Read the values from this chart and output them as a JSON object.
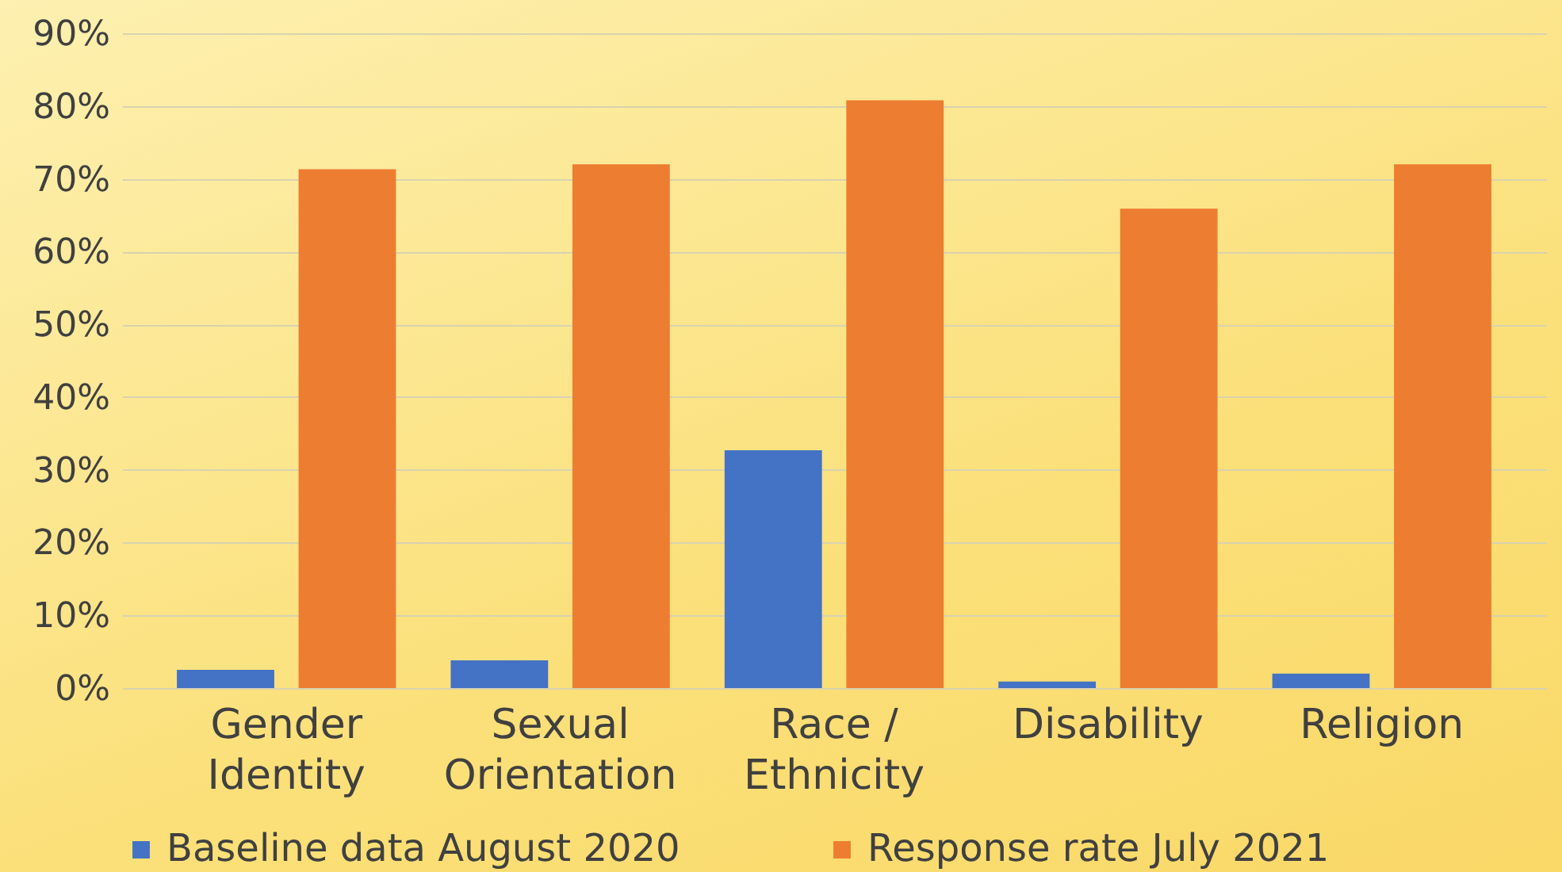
{
  "chart_data": {
    "type": "bar",
    "categories": [
      "Gender Identity",
      "Sexual Orientation",
      "Race / Ethnicity",
      "Disability",
      "Religion"
    ],
    "series": [
      {
        "name": "Baseline data August 2020",
        "color": "#4472c4",
        "values": [
          2.5,
          3.8,
          32.7,
          0.9,
          2
        ]
      },
      {
        "name": "Response rate July 2021",
        "color": "#ed7d31",
        "values": [
          71.3,
          72,
          80.8,
          65.9,
          72
        ]
      }
    ],
    "ylim": [
      0,
      90
    ],
    "yticks": [
      {
        "value": 0,
        "label": "0%"
      },
      {
        "value": 10,
        "label": "10%"
      },
      {
        "value": 20,
        "label": "20%"
      },
      {
        "value": 30,
        "label": "30%"
      },
      {
        "value": 40,
        "label": "40%"
      },
      {
        "value": 50,
        "label": "50%"
      },
      {
        "value": 60,
        "label": "60%"
      },
      {
        "value": 70,
        "label": "70%"
      },
      {
        "value": 80,
        "label": "80%"
      },
      {
        "value": 90,
        "label": "90%"
      }
    ],
    "grid": "y",
    "legend": "bottom"
  }
}
